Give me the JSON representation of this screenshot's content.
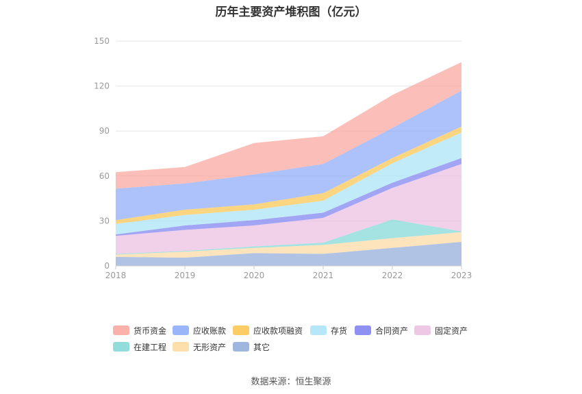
{
  "chart_data": {
    "type": "area",
    "stacked": true,
    "title": "历年主要资产堆积图（亿元）",
    "categories": [
      "2018",
      "2019",
      "2020",
      "2021",
      "2022",
      "2023"
    ],
    "ylim": [
      0,
      150
    ],
    "yticks": [
      "0",
      "30",
      "60",
      "90",
      "120",
      "150"
    ],
    "grid": true,
    "legend_position": "bottom",
    "series": [
      {
        "name": "其它",
        "color": "#8eaad8",
        "values": [
          6,
          5.5,
          8.5,
          8,
          12,
          16
        ]
      },
      {
        "name": "无形资产",
        "color": "#fdd9a0",
        "values": [
          1.5,
          4,
          3.5,
          6,
          6.5,
          6.5
        ]
      },
      {
        "name": "在建工程",
        "color": "#7fd6d6",
        "values": [
          0.5,
          0.5,
          1,
          1.5,
          12.5,
          0.5
        ]
      },
      {
        "name": "固定资产",
        "color": "#ebbde0",
        "values": [
          12,
          14,
          14,
          16.5,
          21,
          45
        ]
      },
      {
        "name": "合同资产",
        "color": "#7b7ef0",
        "values": [
          1,
          3,
          3.5,
          3.5,
          3.5,
          4
        ]
      },
      {
        "name": "存货",
        "color": "#a8e3f7",
        "values": [
          7,
          7,
          7,
          8,
          13,
          17
        ]
      },
      {
        "name": "应收款项融资",
        "color": "#fbc34c",
        "values": [
          2.5,
          3.5,
          3.5,
          5,
          3.5,
          4
        ]
      },
      {
        "name": "应收账款",
        "color": "#8aa8f8",
        "values": [
          21,
          17.5,
          20,
          19.5,
          20,
          24
        ]
      },
      {
        "name": "货币资金",
        "color": "#f9a39b",
        "values": [
          11,
          11,
          21,
          18.5,
          22,
          19
        ]
      }
    ],
    "legend_order": [
      "货币资金",
      "应收账款",
      "应收款项融资",
      "存货",
      "合同资产",
      "固定资产",
      "在建工程",
      "无形资产",
      "其它"
    ]
  },
  "source_text": "数据来源：恒生聚源"
}
